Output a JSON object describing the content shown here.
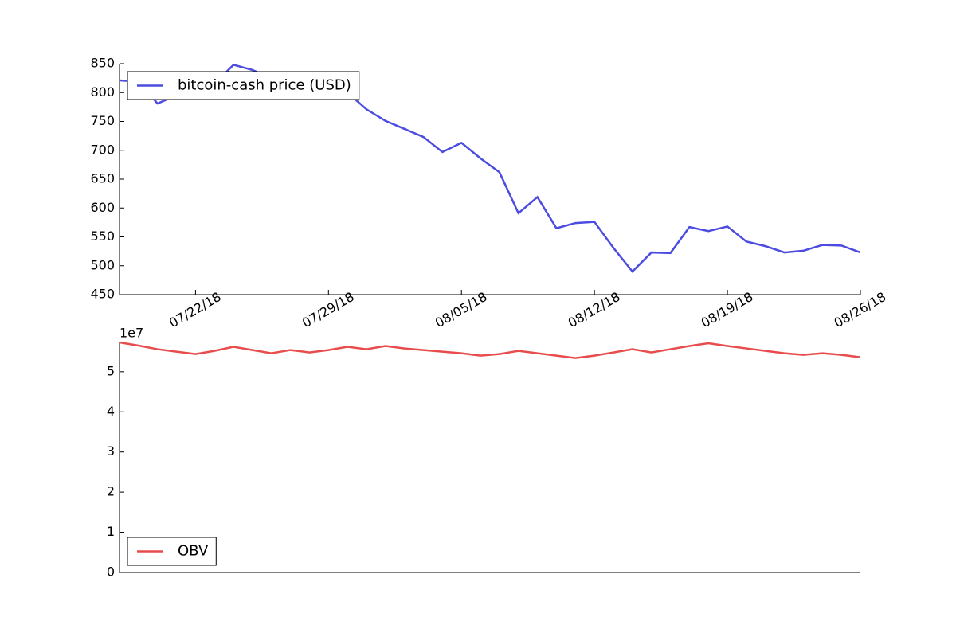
{
  "chart_data": [
    {
      "type": "line",
      "x": [
        "2018-07-18",
        "2018-07-19",
        "2018-07-20",
        "2018-07-21",
        "2018-07-22",
        "2018-07-23",
        "2018-07-24",
        "2018-07-25",
        "2018-07-26",
        "2018-07-27",
        "2018-07-28",
        "2018-07-29",
        "2018-07-30",
        "2018-07-31",
        "2018-08-01",
        "2018-08-02",
        "2018-08-03",
        "2018-08-04",
        "2018-08-05",
        "2018-08-06",
        "2018-08-07",
        "2018-08-08",
        "2018-08-09",
        "2018-08-10",
        "2018-08-11",
        "2018-08-12",
        "2018-08-13",
        "2018-08-14",
        "2018-08-15",
        "2018-08-16",
        "2018-08-17",
        "2018-08-18",
        "2018-08-19",
        "2018-08-20",
        "2018-08-21",
        "2018-08-22",
        "2018-08-23",
        "2018-08-24",
        "2018-08-25",
        "2018-08-26"
      ],
      "series": [
        {
          "name": "bitcoin-cash price (USD)",
          "color": "#4c4ce0",
          "values": [
            821,
            819,
            781,
            795,
            805,
            815,
            848,
            839,
            825,
            815,
            810,
            805,
            800,
            771,
            751,
            737,
            723,
            697,
            713,
            686,
            662,
            591,
            619,
            565,
            574,
            576,
            531,
            490,
            523,
            522,
            567,
            560,
            568,
            542,
            534,
            523,
            526,
            536,
            535,
            523
          ]
        }
      ],
      "xlim": [
        "2018-07-18",
        "2018-08-26"
      ],
      "xticks": [
        {
          "value": "2018-07-22",
          "label": "07/22/18"
        },
        {
          "value": "2018-07-29",
          "label": "07/29/18"
        },
        {
          "value": "2018-08-05",
          "label": "08/05/18"
        },
        {
          "value": "2018-08-12",
          "label": "08/12/18"
        },
        {
          "value": "2018-08-19",
          "label": "08/19/18"
        },
        {
          "value": "2018-08-26",
          "label": "08/26/18"
        }
      ],
      "ylim": [
        450,
        850
      ],
      "yticks": [
        450,
        500,
        550,
        600,
        650,
        700,
        750,
        800,
        850
      ],
      "legend": "upper left"
    },
    {
      "type": "line",
      "x": [
        "2018-07-18",
        "2018-07-19",
        "2018-07-20",
        "2018-07-21",
        "2018-07-22",
        "2018-07-23",
        "2018-07-24",
        "2018-07-25",
        "2018-07-26",
        "2018-07-27",
        "2018-07-28",
        "2018-07-29",
        "2018-07-30",
        "2018-07-31",
        "2018-08-01",
        "2018-08-02",
        "2018-08-03",
        "2018-08-04",
        "2018-08-05",
        "2018-08-06",
        "2018-08-07",
        "2018-08-08",
        "2018-08-09",
        "2018-08-10",
        "2018-08-11",
        "2018-08-12",
        "2018-08-13",
        "2018-08-14",
        "2018-08-15",
        "2018-08-16",
        "2018-08-17",
        "2018-08-18",
        "2018-08-19",
        "2018-08-20",
        "2018-08-21",
        "2018-08-22",
        "2018-08-23",
        "2018-08-24",
        "2018-08-25",
        "2018-08-26"
      ],
      "series": [
        {
          "name": "OBV",
          "color": "#e84c4c",
          "values": [
            57300000,
            56500000,
            55600000,
            55000000,
            54400000,
            55200000,
            56200000,
            55400000,
            54600000,
            55400000,
            54800000,
            55400000,
            56200000,
            55600000,
            56400000,
            55800000,
            55400000,
            55000000,
            54600000,
            54000000,
            54400000,
            55200000,
            54600000,
            54000000,
            53400000,
            54000000,
            54800000,
            55600000,
            54800000,
            55600000,
            56400000,
            57100000,
            56400000,
            55800000,
            55200000,
            54600000,
            54200000,
            54600000,
            54200000,
            53600000
          ]
        }
      ],
      "xlim": [
        "2018-07-18",
        "2018-08-26"
      ],
      "ylim": [
        0,
        57300000
      ],
      "yticks": [
        {
          "value": 0,
          "label": "0"
        },
        {
          "value": 10000000,
          "label": "1"
        },
        {
          "value": 20000000,
          "label": "2"
        },
        {
          "value": 30000000,
          "label": "3"
        },
        {
          "value": 40000000,
          "label": "4"
        },
        {
          "value": 50000000,
          "label": "5"
        }
      ],
      "y_offset_label": "1e7",
      "legend": "lower left"
    }
  ]
}
